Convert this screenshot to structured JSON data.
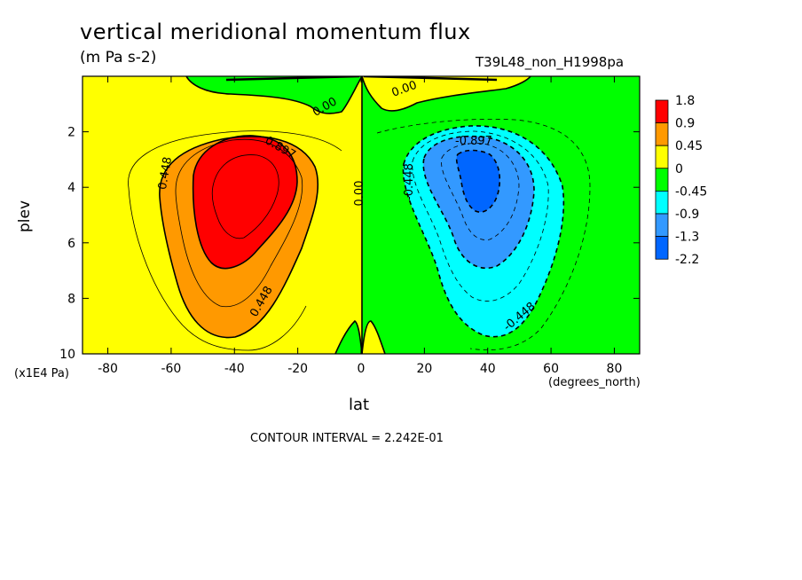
{
  "chart_data": {
    "type": "heatmap",
    "title": "vertical meridional momentum flux",
    "units": "(m Pa s-2)",
    "run_name": "T39L48_non_H1998pa",
    "xlabel": "lat",
    "x_unit": "(degrees_north)",
    "ylabel": "plev",
    "y_unit": "(x1E4 Pa)",
    "xlim": [
      -88,
      88
    ],
    "ylim": [
      0,
      10
    ],
    "y_inverted": true,
    "x_ticks": [
      "-80",
      "-60",
      "-40",
      "-20",
      "0",
      "20",
      "40",
      "60",
      "80"
    ],
    "y_ticks": [
      "2",
      "4",
      "6",
      "8",
      "10"
    ],
    "colorbar": {
      "labels": [
        "1.8",
        "0.9",
        "0.45",
        "0",
        "-0.45",
        "-0.9",
        "-1.3",
        "-2.2"
      ],
      "colors": [
        "#ff0000",
        "#ff9900",
        "#ffff00",
        "#00ff00",
        "#00ffff",
        "#3399ff",
        "#0066ff"
      ]
    },
    "contour_labels": [
      "0.448",
      "0.897",
      "0.448",
      "0.00",
      "0.00",
      "0.00",
      "-0.897",
      "-0.448",
      "-0.448"
    ],
    "contour_interval_text": "CONTOUR INTERVAL = 2.242E-01",
    "features": [
      {
        "sign": "positive",
        "center_lat": -37,
        "center_plev": 4.0,
        "peak": 1.8
      },
      {
        "sign": "negative",
        "center_lat": 37,
        "center_plev": 4.0,
        "peak": -2.2
      }
    ]
  }
}
